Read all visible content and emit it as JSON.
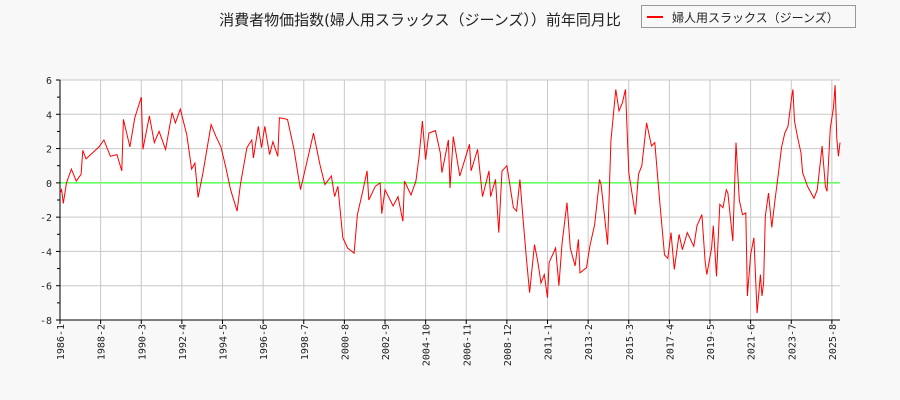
{
  "chart_data": {
    "type": "line",
    "title": "消費者物価指数(婦人用スラックス（ジーンズ））前年同月比",
    "xlabel": "",
    "ylabel": "",
    "ylim": [
      -8,
      6
    ],
    "yticks": [
      "6",
      "4",
      "2",
      "0",
      "-2",
      "-4",
      "-6",
      "-8"
    ],
    "xticks": [
      "1986-1",
      "1988-2",
      "1990-3",
      "1992-4",
      "1994-5",
      "1996-6",
      "1998-7",
      "2000-8",
      "2002-9",
      "2004-10",
      "2006-11",
      "2008-12",
      "2011-1",
      "2013-2",
      "2015-3",
      "2017-4",
      "2019-5",
      "2021-6",
      "2023-7",
      "2025-8"
    ],
    "grid": true,
    "legend_position": "top-right",
    "zero_line_color": "#00ff00",
    "series": [
      {
        "name": "婦人用スラックス（ジーンズ）",
        "color": "#ff0000",
        "points": [
          [
            "1986-1",
            -0.6
          ],
          [
            "1986-2",
            -0.4
          ],
          [
            "1986-3",
            -1.2
          ],
          [
            "1986-5",
            0.0
          ],
          [
            "1986-8",
            0.8
          ],
          [
            "1986-11",
            0.1
          ],
          [
            "1987-2",
            0.5
          ],
          [
            "1987-3",
            1.9
          ],
          [
            "1987-5",
            1.4
          ],
          [
            "1987-9",
            1.75
          ],
          [
            "1988-1",
            2.1
          ],
          [
            "1988-4",
            2.5
          ],
          [
            "1988-8",
            1.55
          ],
          [
            "1988-12",
            1.65
          ],
          [
            "1989-3",
            0.7
          ],
          [
            "1989-4",
            3.7
          ],
          [
            "1989-8",
            2.1
          ],
          [
            "1989-11",
            3.8
          ],
          [
            "1990-3",
            5.0
          ],
          [
            "1990-4",
            1.95
          ],
          [
            "1990-8",
            3.9
          ],
          [
            "1990-11",
            2.35
          ],
          [
            "1991-2",
            3.0
          ],
          [
            "1991-6",
            1.95
          ],
          [
            "1991-10",
            4.1
          ],
          [
            "1991-12",
            3.5
          ],
          [
            "1992-3",
            4.3
          ],
          [
            "1992-7",
            2.8
          ],
          [
            "1992-10",
            0.8
          ],
          [
            "1992-12",
            1.15
          ],
          [
            "1993-2",
            -0.85
          ],
          [
            "1993-5",
            0.6
          ],
          [
            "1993-10",
            3.4
          ],
          [
            "1994-1",
            2.7
          ],
          [
            "1994-4",
            2.1
          ],
          [
            "1994-7",
            0.9
          ],
          [
            "1994-10",
            -0.4
          ],
          [
            "1995-2",
            -1.65
          ],
          [
            "1995-4",
            -0.1
          ],
          [
            "1995-8",
            2.05
          ],
          [
            "1995-11",
            2.5
          ],
          [
            "1995-12",
            1.45
          ],
          [
            "1996-3",
            3.3
          ],
          [
            "1996-5",
            2.05
          ],
          [
            "1996-7",
            3.3
          ],
          [
            "1996-10",
            1.65
          ],
          [
            "1996-12",
            2.4
          ],
          [
            "1997-3",
            1.55
          ],
          [
            "1997-4",
            3.8
          ],
          [
            "1997-9",
            3.7
          ],
          [
            "1998-1",
            1.95
          ],
          [
            "1998-5",
            -0.4
          ],
          [
            "1998-10",
            1.65
          ],
          [
            "1999-1",
            2.9
          ],
          [
            "1999-5",
            1.05
          ],
          [
            "1999-8",
            -0.1
          ],
          [
            "1999-12",
            0.4
          ],
          [
            "2000-2",
            -0.8
          ],
          [
            "2000-4",
            -0.2
          ],
          [
            "2000-7",
            -3.2
          ],
          [
            "2000-10",
            -3.8
          ],
          [
            "2001-2",
            -4.1
          ],
          [
            "2001-4",
            -1.85
          ],
          [
            "2001-7",
            -0.6
          ],
          [
            "2001-10",
            0.7
          ],
          [
            "2001-11",
            -1.0
          ],
          [
            "2002-3",
            -0.2
          ],
          [
            "2002-6",
            0.0
          ],
          [
            "2002-7",
            -1.8
          ],
          [
            "2002-9",
            -0.4
          ],
          [
            "2003-2",
            -1.35
          ],
          [
            "2003-5",
            -0.8
          ],
          [
            "2003-8",
            -2.25
          ],
          [
            "2003-9",
            0.1
          ],
          [
            "2004-1",
            -0.7
          ],
          [
            "2004-4",
            0.1
          ],
          [
            "2004-6",
            1.55
          ],
          [
            "2004-8",
            3.6
          ],
          [
            "2004-10",
            1.35
          ],
          [
            "2004-12",
            2.9
          ],
          [
            "2005-4",
            3.05
          ],
          [
            "2005-7",
            1.75
          ],
          [
            "2005-8",
            0.6
          ],
          [
            "2005-12",
            2.5
          ],
          [
            "2006-1",
            -0.3
          ],
          [
            "2006-3",
            2.7
          ],
          [
            "2006-7",
            0.4
          ],
          [
            "2007-1",
            2.25
          ],
          [
            "2007-2",
            0.7
          ],
          [
            "2007-6",
            1.95
          ],
          [
            "2007-9",
            -0.8
          ],
          [
            "2008-1",
            0.7
          ],
          [
            "2008-2",
            -0.8
          ],
          [
            "2008-5",
            0.2
          ],
          [
            "2008-7",
            -2.9
          ],
          [
            "2008-9",
            0.7
          ],
          [
            "2008-12",
            1.0
          ],
          [
            "2009-4",
            -1.45
          ],
          [
            "2009-6",
            -1.65
          ],
          [
            "2009-8",
            0.2
          ],
          [
            "2009-10",
            -2.15
          ],
          [
            "2009-12",
            -4.4
          ],
          [
            "2010-2",
            -6.4
          ],
          [
            "2010-5",
            -3.6
          ],
          [
            "2010-7",
            -4.6
          ],
          [
            "2010-9",
            -5.85
          ],
          [
            "2010-11",
            -5.35
          ],
          [
            "2011-1",
            -6.7
          ],
          [
            "2011-2",
            -4.65
          ],
          [
            "2011-6",
            -3.8
          ],
          [
            "2011-8",
            -6.0
          ],
          [
            "2011-10",
            -3.5
          ],
          [
            "2012-1",
            -1.15
          ],
          [
            "2012-3",
            -3.8
          ],
          [
            "2012-6",
            -4.85
          ],
          [
            "2012-8",
            -3.3
          ],
          [
            "2012-9",
            -5.25
          ],
          [
            "2013-1",
            -4.95
          ],
          [
            "2013-3",
            -3.7
          ],
          [
            "2013-6",
            -2.45
          ],
          [
            "2013-9",
            0.2
          ],
          [
            "2013-10",
            -0.1
          ],
          [
            "2014-2",
            -3.6
          ],
          [
            "2014-4",
            2.45
          ],
          [
            "2014-7",
            5.45
          ],
          [
            "2014-9",
            4.2
          ],
          [
            "2014-11",
            4.65
          ],
          [
            "2015-1",
            5.45
          ],
          [
            "2015-3",
            0.6
          ],
          [
            "2015-7",
            -1.85
          ],
          [
            "2015-9",
            0.5
          ],
          [
            "2015-11",
            1.0
          ],
          [
            "2016-2",
            3.5
          ],
          [
            "2016-5",
            2.15
          ],
          [
            "2016-7",
            2.35
          ],
          [
            "2016-10",
            -1.0
          ],
          [
            "2017-1",
            -4.2
          ],
          [
            "2017-3",
            -4.4
          ],
          [
            "2017-5",
            -2.9
          ],
          [
            "2017-7",
            -5.05
          ],
          [
            "2017-10",
            -3.0
          ],
          [
            "2017-12",
            -3.9
          ],
          [
            "2018-3",
            -2.9
          ],
          [
            "2018-7",
            -3.7
          ],
          [
            "2018-9",
            -2.5
          ],
          [
            "2018-12",
            -1.85
          ],
          [
            "2019-2",
            -4.55
          ],
          [
            "2019-3",
            -5.35
          ],
          [
            "2019-6",
            -3.8
          ],
          [
            "2019-7",
            -2.5
          ],
          [
            "2019-9",
            -5.45
          ],
          [
            "2019-11",
            -1.25
          ],
          [
            "2020-1",
            -1.45
          ],
          [
            "2020-3",
            -0.4
          ],
          [
            "2020-4",
            -0.6
          ],
          [
            "2020-7",
            -3.4
          ],
          [
            "2020-9",
            2.35
          ],
          [
            "2020-11",
            -1.0
          ],
          [
            "2021-1",
            -1.85
          ],
          [
            "2021-3",
            -1.75
          ],
          [
            "2021-4",
            -6.6
          ],
          [
            "2021-6",
            -4.2
          ],
          [
            "2021-8",
            -3.2
          ],
          [
            "2021-10",
            -7.6
          ],
          [
            "2021-12",
            -5.35
          ],
          [
            "2022-1",
            -6.6
          ],
          [
            "2022-2",
            -5.85
          ],
          [
            "2022-3",
            -1.95
          ],
          [
            "2022-5",
            -0.6
          ],
          [
            "2022-7",
            -2.6
          ],
          [
            "2022-9",
            -1.0
          ],
          [
            "2022-11",
            0.5
          ],
          [
            "2023-1",
            2.05
          ],
          [
            "2023-3",
            2.9
          ],
          [
            "2023-5",
            3.3
          ],
          [
            "2023-7",
            4.85
          ],
          [
            "2023-8",
            5.45
          ],
          [
            "2023-9",
            3.6
          ],
          [
            "2023-11",
            2.6
          ],
          [
            "2024-1",
            1.75
          ],
          [
            "2024-2",
            0.6
          ],
          [
            "2024-5",
            -0.2
          ],
          [
            "2024-9",
            -0.9
          ],
          [
            "2024-11",
            -0.4
          ],
          [
            "2025-2",
            2.15
          ],
          [
            "2025-4",
            -0.2
          ],
          [
            "2025-5",
            -0.5
          ],
          [
            "2025-7",
            3.2
          ],
          [
            "2025-9",
            4.4
          ],
          [
            "2025-10",
            5.7
          ],
          [
            "2025-11",
            2.6
          ],
          [
            "2025-12",
            1.55
          ],
          [
            "2026-1",
            2.35
          ]
        ]
      }
    ]
  }
}
